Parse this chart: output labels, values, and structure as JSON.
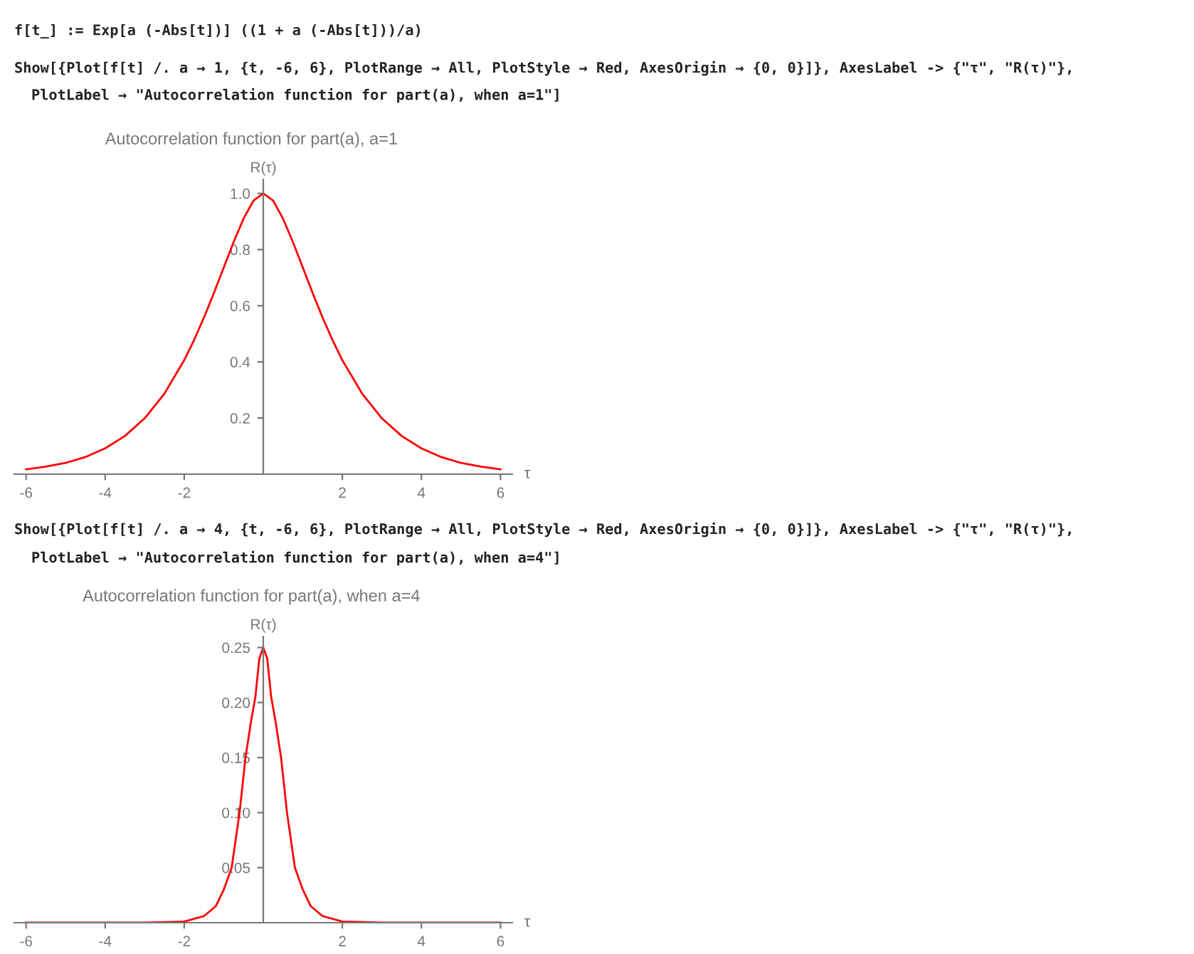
{
  "chart_data": [
    {
      "type": "line",
      "title": "Autocorrelation function for part(a), a=1",
      "xlabel": "τ",
      "ylabel": "R(τ)",
      "annotations": [
        "f[t_] := Exp[a (-Abs[t])] ((1 + a (-Abs[t]))/a)",
        "Show[{Plot[f[t] /. a → 1, {t, -6, 6}, PlotRange → All, PlotStyle → Red, AxesOrigin → {0, 0}]}, AxesLabel -> {\"τ\", \"R(τ)\"},",
        "PlotLabel → \"Autocorrelation function for part(a), when a=1\"]"
      ],
      "series": [
        {
          "color": "#ff0000",
          "x": [
            -6,
            -5.5,
            -5,
            -4.5,
            -4,
            -3.5,
            -3,
            -2.5,
            -2,
            -1.75,
            -1.5,
            -1.25,
            -1,
            -0.75,
            -0.5,
            -0.25,
            0,
            0.25,
            0.5,
            0.75,
            1,
            1.25,
            1.5,
            1.75,
            2,
            2.5,
            3,
            3.5,
            4,
            4.5,
            5,
            5.5,
            6
          ],
          "values": [
            0.017,
            0.027,
            0.04,
            0.061,
            0.092,
            0.136,
            0.199,
            0.287,
            0.406,
            0.478,
            0.558,
            0.645,
            0.736,
            0.827,
            0.91,
            0.974,
            1.0,
            0.974,
            0.91,
            0.827,
            0.736,
            0.645,
            0.558,
            0.478,
            0.406,
            0.287,
            0.199,
            0.136,
            0.092,
            0.061,
            0.04,
            0.027,
            0.017
          ]
        }
      ],
      "xlim": [
        -6.3,
        6.3
      ],
      "ylim": [
        0,
        1.05
      ],
      "xticks": [
        -6,
        -4,
        -2,
        2,
        4,
        6
      ],
      "yticks": [
        0.2,
        0.4,
        0.6,
        0.8,
        {
          "value": 1,
          "label": "1.0"
        }
      ],
      "grid": false
    },
    {
      "type": "line",
      "title": "Autocorrelation function for part(a), when a=4",
      "xlabel": "τ",
      "ylabel": "R(τ)",
      "annotations": [
        "Show[{Plot[f[t] /. a → 4, {t, -6, 6}, PlotRange → All, PlotStyle → Red, AxesOrigin → {0, 0}]}, AxesLabel -> {\"τ\", \"R(τ)\"},",
        "PlotLabel → \"Autocorrelation function for part(a), when a=4\"]"
      ],
      "series": [
        {
          "color": "#ff0000",
          "x": [
            -6,
            -3,
            -2,
            -1.5,
            -1.2,
            -1.0,
            -0.8,
            -0.6,
            -0.45,
            -0.3,
            -0.2,
            -0.1,
            0,
            0.1,
            0.2,
            0.3,
            0.45,
            0.6,
            0.8,
            1.0,
            1.2,
            1.5,
            2,
            3,
            6
          ],
          "values": [
            0,
            0,
            0.001,
            0.006,
            0.015,
            0.03,
            0.05,
            0.1,
            0.15,
            0.185,
            0.205,
            0.24,
            0.25,
            0.24,
            0.205,
            0.185,
            0.15,
            0.1,
            0.05,
            0.03,
            0.015,
            0.006,
            0.001,
            0,
            0
          ]
        }
      ],
      "xlim": [
        -6.3,
        6.3
      ],
      "ylim": [
        0,
        0.26
      ],
      "xticks": [
        -6,
        -4,
        -2,
        2,
        4,
        6
      ],
      "yticks": [
        0.05,
        {
          "value": 0.1,
          "label": "0.10"
        },
        0.15,
        {
          "value": 0.2,
          "label": "0.20"
        },
        0.25
      ],
      "grid": false
    }
  ]
}
